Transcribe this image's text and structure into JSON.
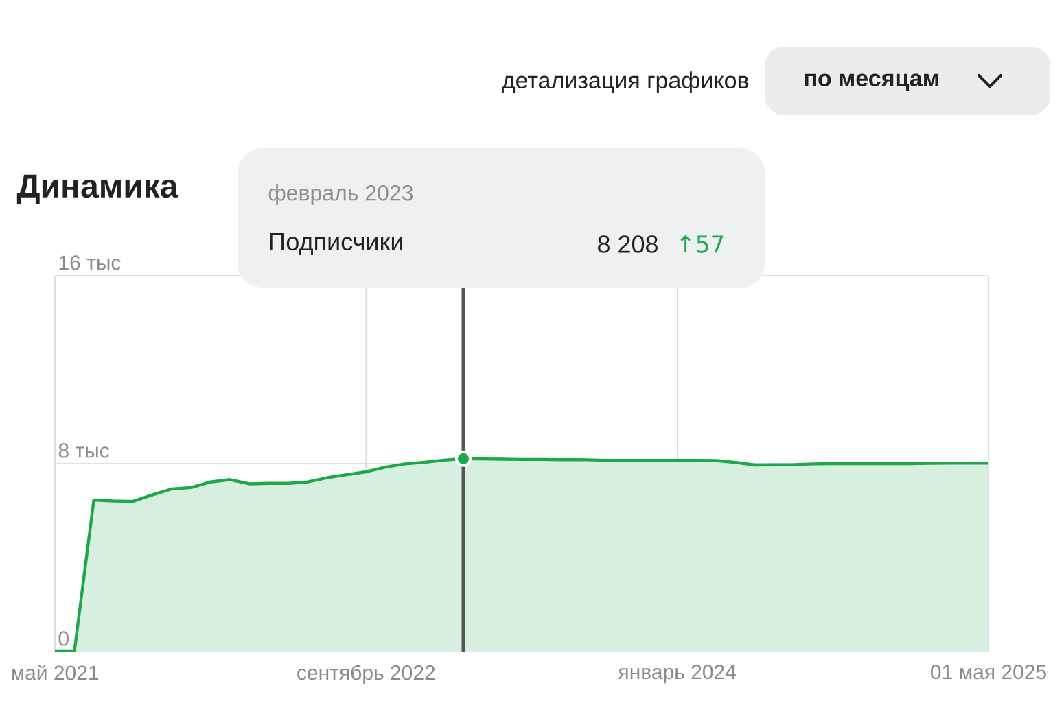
{
  "chart_data": {
    "type": "area",
    "title": "Динамика",
    "x": [
      "2021-05",
      "2021-06",
      "2021-07",
      "2021-08",
      "2021-09",
      "2021-10",
      "2021-11",
      "2021-12",
      "2022-01",
      "2022-02",
      "2022-03",
      "2022-04",
      "2022-05",
      "2022-06",
      "2022-07",
      "2022-08",
      "2022-09",
      "2022-10",
      "2022-11",
      "2022-12",
      "2023-01",
      "2023-02",
      "2023-03",
      "2023-04",
      "2023-05",
      "2023-06",
      "2023-07",
      "2023-08",
      "2023-09",
      "2023-10",
      "2023-11",
      "2023-12",
      "2024-01",
      "2024-02",
      "2024-03",
      "2024-04",
      "2024-05",
      "2024-06",
      "2024-07",
      "2024-08",
      "2024-09",
      "2024-10",
      "2024-11",
      "2024-12",
      "2025-01",
      "2025-02",
      "2025-03",
      "2025-04",
      "2025-05"
    ],
    "series": [
      {
        "name": "Подписчики",
        "color": "#1ea84a",
        "values": [
          0,
          0,
          6.45,
          6.41,
          6.39,
          6.67,
          6.92,
          6.98,
          7.22,
          7.32,
          7.14,
          7.16,
          7.16,
          7.22,
          7.4,
          7.53,
          7.65,
          7.85,
          7.99,
          8.06,
          8.15,
          8.21,
          8.2,
          8.19,
          8.18,
          8.18,
          8.17,
          8.17,
          8.15,
          8.14,
          8.14,
          8.14,
          8.14,
          8.14,
          8.13,
          8.05,
          7.94,
          7.95,
          7.96,
          7.99,
          8.0,
          8.0,
          8.0,
          8.0,
          8.0,
          8.01,
          8.02,
          8.02,
          8.02
        ]
      },
      {
        "type": "scatter",
        "color": "#1ea84a",
        "x": [
          "2023-02"
        ],
        "values": [
          8.21
        ]
      }
    ],
    "xlim": [
      "2021-05",
      "2025-05"
    ],
    "xticks": [
      {
        "value": "2021-05",
        "label": "май 2021"
      },
      {
        "value": "2022-09",
        "label": "сентябрь 2022"
      },
      {
        "value": "2024-01",
        "label": "январь 2024"
      },
      {
        "value": "2025-05",
        "label": "01 мая 2025"
      }
    ],
    "ylim": [
      0,
      16
    ],
    "yticks": [
      0,
      {
        "value": 8,
        "label": "8 тыс"
      },
      {
        "value": 16,
        "label": "16 тыс"
      }
    ],
    "grid": true,
    "ref_lines": [
      {
        "axis": "x",
        "value": "2023-02",
        "color": "#555555"
      }
    ],
    "annotations": [
      "февраль 2023",
      "8 208",
      "↑57",
      "детализация графиков",
      "по месяцам"
    ]
  }
}
